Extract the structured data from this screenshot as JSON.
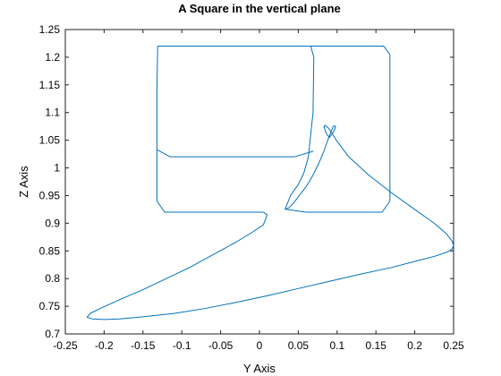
{
  "chart_data": {
    "type": "line",
    "title": "A Square in the vertical plane",
    "xlabel": "Y Axis",
    "ylabel": "Z Axis",
    "xlim": [
      -0.25,
      0.25
    ],
    "ylim": [
      0.7,
      1.25
    ],
    "xticks": [
      -0.25,
      -0.2,
      -0.15,
      -0.1,
      -0.05,
      0,
      0.05,
      0.1,
      0.15,
      0.2,
      0.25
    ],
    "xtick_labels": [
      "-0.25",
      "-0.2",
      "-0.15",
      "-0.1",
      "-0.05",
      "0",
      "0.05",
      "0.1",
      "0.15",
      "0.2",
      "0.25"
    ],
    "yticks": [
      0.7,
      0.75,
      0.8,
      0.85,
      0.9,
      0.95,
      1,
      1.05,
      1.1,
      1.15,
      1.2,
      1.25
    ],
    "ytick_labels": [
      "0.7",
      "0.75",
      "0.8",
      "0.85",
      "0.9",
      "0.95",
      "1",
      "1.05",
      "1.1",
      "1.15",
      "1.2",
      "1.25"
    ],
    "grid": false,
    "line_color": "#0072BD",
    "series": [
      {
        "x": [
          0.066,
          0.07,
          0.069,
          0.063,
          0.057,
          0.05,
          0.04,
          0.033,
          0.038,
          0.043,
          0.048,
          0.054,
          0.06,
          0.065,
          0.07,
          0.077,
          0.083,
          0.088,
          0.092,
          0.095,
          0.097,
          0.098,
          0.097,
          0.094,
          0.09,
          0.086,
          0.083,
          0.085,
          0.09,
          0.099,
          0.115,
          0.14,
          0.17,
          0.2,
          0.225,
          0.24,
          0.248,
          0.25,
          0.248,
          0.24,
          0.225,
          0.2,
          0.17,
          0.13,
          0.09,
          0.05,
          0.01,
          -0.03,
          -0.07,
          -0.11,
          -0.15,
          -0.18,
          -0.2,
          -0.215,
          -0.222,
          -0.218,
          -0.205,
          -0.18,
          -0.15,
          -0.12,
          -0.09,
          -0.06,
          -0.03,
          -0.01,
          0.005,
          0.01,
          0.005,
          -0.005,
          -0.04,
          -0.07,
          -0.12,
          -0.122,
          -0.132,
          -0.132,
          -0.132,
          -0.132,
          -0.132,
          -0.131,
          -0.115,
          -0.09,
          -0.06,
          -0.03,
          0.0,
          0.03,
          0.05,
          0.066
        ],
        "y": [
          1.22,
          1.2,
          1.1,
          1.02,
          0.99,
          0.97,
          0.95,
          0.925,
          0.928,
          0.935,
          0.944,
          0.955,
          0.966,
          0.977,
          0.99,
          1.01,
          1.03,
          1.05,
          1.065,
          1.075,
          1.076,
          1.075,
          1.07,
          1.062,
          1.055,
          1.062,
          1.075,
          1.077,
          1.07,
          1.05,
          1.02,
          0.988,
          0.955,
          0.925,
          0.9,
          0.882,
          0.868,
          0.86,
          0.853,
          0.847,
          0.84,
          0.831,
          0.82,
          0.808,
          0.795,
          0.782,
          0.769,
          0.757,
          0.746,
          0.737,
          0.731,
          0.727,
          0.726,
          0.727,
          0.73,
          0.737,
          0.746,
          0.762,
          0.78,
          0.8,
          0.82,
          0.843,
          0.866,
          0.883,
          0.897,
          0.915,
          0.92,
          0.92,
          0.92,
          0.92,
          0.92,
          0.92,
          0.94,
          1.0,
          1.033,
          1.1,
          1.15,
          1.22,
          1.22,
          1.22,
          1.22,
          1.22,
          1.22,
          1.22,
          1.22,
          1.22
        ]
      },
      {
        "x": [
          0.065,
          0.1,
          0.16,
          0.168,
          0.168,
          0.168,
          0.168,
          0.158,
          0.06,
          0.035
        ],
        "y": [
          1.22,
          1.22,
          1.22,
          1.205,
          1.1,
          1.0,
          0.94,
          0.92,
          0.92,
          0.925
        ]
      },
      {
        "x": [
          -0.132,
          -0.115,
          -0.07,
          0.0,
          0.045,
          0.069
        ],
        "y": [
          1.033,
          1.02,
          1.02,
          1.02,
          1.02,
          1.03
        ]
      }
    ]
  }
}
